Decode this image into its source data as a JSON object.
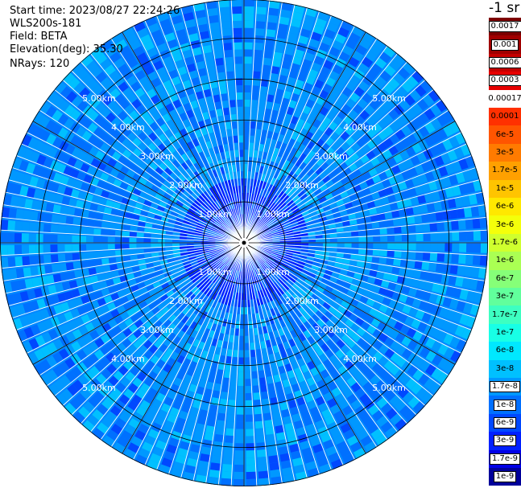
{
  "header": {
    "start_time": "Start time: 2023/08/27 22:24:26",
    "instrument": "WLS200s-181",
    "field": "Field: BETA",
    "elevation": "Elevation(deg): 35.30",
    "nrays": "NRays: 120"
  },
  "colorbar": {
    "unit_label": "-1 sr",
    "labels": [
      "0.0017",
      "0.001",
      "0.0006",
      "0.0003",
      "0.00017",
      "0.0001",
      "6e-5",
      "3e-5",
      "1.7e-5",
      "1e-5",
      "6e-6",
      "3e-6",
      "1.7e-6",
      "1e-6",
      "6e-7",
      "3e-7",
      "1.7e-7",
      "1e-7",
      "6e-8",
      "3e-8",
      "1.7e-8",
      "1e-8",
      "6e-9",
      "3e-9",
      "1.7e-9",
      "1e-9"
    ],
    "colors": [
      "#7d0000",
      "#a00000",
      "#c40000",
      "#e60000",
      "#ff1000",
      "#ff3000",
      "#ff5500",
      "#ff7b00",
      "#ffa000",
      "#ffc400",
      "#ffe800",
      "#f4ff0a",
      "#cfff2e",
      "#aaff53",
      "#86ff78",
      "#61ff9c",
      "#3dffc1",
      "#18ffe6",
      "#00e8ff",
      "#00c0ff",
      "#0098ff",
      "#0070ff",
      "#0048ff",
      "#0020ff",
      "#0000e6",
      "#00009a"
    ]
  },
  "chart_data": {
    "type": "heatmap",
    "description_free": true,
    "field": "BETA",
    "elevation_deg": 35.3,
    "n_rays": 120,
    "range_rings_km": [
      1,
      2,
      3,
      4,
      5
    ],
    "range_ring_labels": [
      "1.00km",
      "2.00km",
      "3.00km",
      "4.00km",
      "5.00km"
    ],
    "max_range_km": 5.95,
    "dominant_color_level": "1.7e-8",
    "value_range": [
      1e-09,
      0.0017
    ]
  }
}
